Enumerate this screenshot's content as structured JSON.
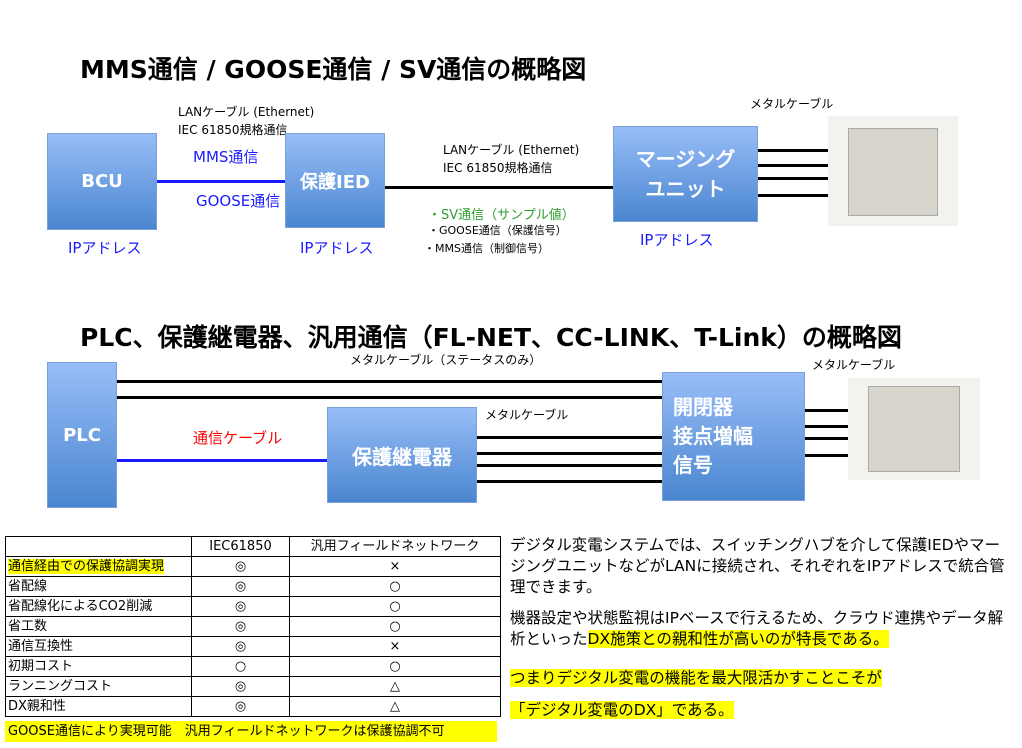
{
  "diagram1": {
    "title": "MMS通信 / GOOSE通信 / SV通信の概略図",
    "bcu": "BCU",
    "ied": "保護IED",
    "mu_line1": "マージング",
    "mu_line2": "ユニット",
    "lan1a": "LANケーブル (Ethernet)",
    "lan1b": "IEC 61850規格通信",
    "mms": "MMS通信",
    "goose": "GOOSE通信",
    "lan2a": "LANケーブル (Ethernet)",
    "lan2b": "IEC 61850規格通信",
    "sv": "・SV通信（サンプル値）",
    "goose2": "・GOOSE通信（保護信号）",
    "mms2": "・MMS通信（制御信号）",
    "ip1": "IPアドレス",
    "ip2": "IPアドレス",
    "ip3": "IPアドレス",
    "metal": "メタルケーブル"
  },
  "diagram2": {
    "title": "PLC、保護継電器、汎用通信（FL-NET、CC-LINK、T-Link）の概略図",
    "plc": "PLC",
    "relay": "保護継電器",
    "sw_line1": "開閉器",
    "sw_line2": "接点増幅",
    "sw_line3": "信号",
    "metal_status": "メタルケーブル（ステータスのみ）",
    "comm_cable": "通信ケーブル",
    "metal1": "メタルケーブル",
    "metal2": "メタルケーブル"
  },
  "table": {
    "headers": [
      "",
      "IEC61850",
      "汎用フィールドネットワーク"
    ],
    "rows": [
      [
        "通信経由での保護協調実現",
        "◎",
        "×"
      ],
      [
        "省配線",
        "◎",
        "○"
      ],
      [
        "省配線化によるCO2削減",
        "◎",
        "○"
      ],
      [
        "省工数",
        "◎",
        "○"
      ],
      [
        "通信互換性",
        "◎",
        "×"
      ],
      [
        "初期コスト",
        "○",
        "○"
      ],
      [
        "ランニングコスト",
        "◎",
        "△"
      ],
      [
        "DX親和性",
        "◎",
        "△"
      ]
    ],
    "footer": "GOOSE通信により実現可能　汎用フィールドネットワークは保護協調不可"
  },
  "text": {
    "p1": "デジタル変電システムでは、スイッチングハブを介して保護IEDやマージングユニットなどがLANに接続され、それぞれをIPアドレスで統合管理できます。",
    "p2a": "機器設定や状態監視はIPベースで行えるため、クラウド連携やデータ解析といった",
    "p2b": "DX施策との親和性が高いのが特長である。",
    "p3": "つまりデジタル変電の機能を最大限活かすことこそが",
    "p4": "「デジタル変電のDX」である。"
  },
  "colors": {
    "box": "#4a86d0",
    "highlight": "#ffff00",
    "blue_text": "#1a1aff",
    "green_text": "#2e9e2e",
    "red_text": "#ff0000"
  }
}
